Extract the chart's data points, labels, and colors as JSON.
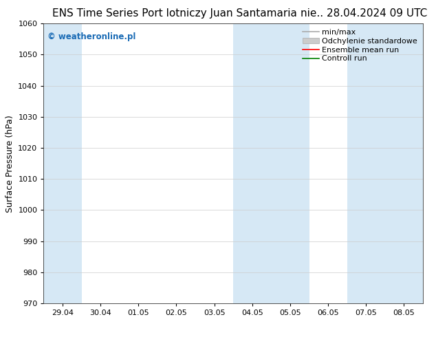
{
  "title_left": "ENS Time Series Port lotniczy Juan Santamaria",
  "title_right": "nie.. 28.04.2024 09 UTC",
  "ylabel": "Surface Pressure (hPa)",
  "ylim": [
    970,
    1060
  ],
  "yticks": [
    970,
    980,
    990,
    1000,
    1010,
    1020,
    1030,
    1040,
    1050,
    1060
  ],
  "x_labels": [
    "29.04",
    "30.04",
    "01.05",
    "02.05",
    "03.05",
    "04.05",
    "05.05",
    "06.05",
    "07.05",
    "08.05"
  ],
  "shaded_color": "#d6e8f5",
  "background_color": "#ffffff",
  "watermark_text": "© weatheronline.pl",
  "watermark_color": "#1a6bb5",
  "legend_entries": [
    {
      "label": "min/max",
      "color": "#aaaaaa",
      "style": "line",
      "lw": 1.2
    },
    {
      "label": "Odchylenie standardowe",
      "color": "#cccccc",
      "style": "fill"
    },
    {
      "label": "Ensemble mean run",
      "color": "#ff0000",
      "style": "line",
      "lw": 1.2
    },
    {
      "label": "Controll run",
      "color": "#008000",
      "style": "line",
      "lw": 1.2
    }
  ],
  "title_fontsize": 11,
  "tick_fontsize": 8,
  "ylabel_fontsize": 9,
  "legend_fontsize": 8
}
